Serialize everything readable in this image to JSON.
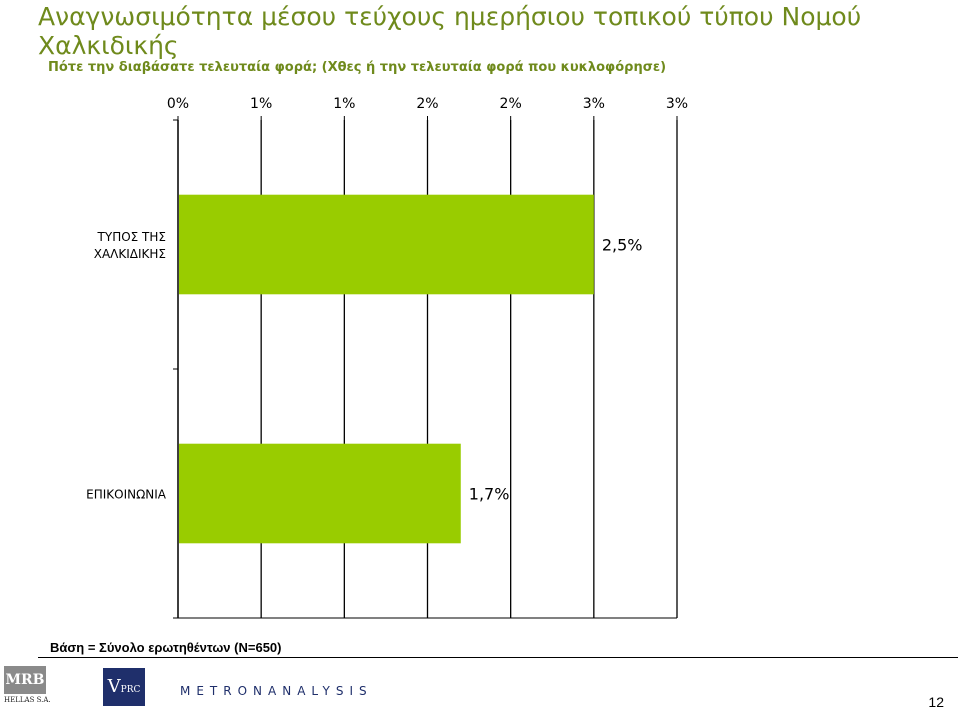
{
  "title": "Αναγνωσιμότητα μέσου τεύχους ημερήσιου τοπικού τύπου Νομού Χαλκιδικής",
  "subtitle": "Πότε την διαβάσατε τελευταία φορά; (Χθες ή την τελευταία φορά που κυκλοφόρησε)",
  "base_note": "Βάση = Σύνολο ερωτηθέντων (N=650)",
  "logos": {
    "mrb": "MRB",
    "mrb_sub": "HELLAS S.A.",
    "vprc": "V",
    "vprc_small": "PRC",
    "metron": "METRONANALYSIS"
  },
  "page_number": "12",
  "colors": {
    "bar": "#99cc00",
    "title": "#6f8a1c"
  },
  "chart_data": {
    "type": "bar",
    "orientation": "horizontal",
    "categories": [
      "ΤΥΠΟΣ ΤΗΣ ΧΑΛΚΙΔΙΚΗΣ",
      "ΕΠΙΚΟΙΝΩΝΙΑ"
    ],
    "category_lines": [
      [
        "ΤΥΠΟΣ ΤΗΣ",
        "ΧΑΛΚΙΔΙΚΗΣ"
      ],
      [
        "ΕΠΙΚΟΙΝΩΝΙΑ"
      ]
    ],
    "values": [
      2.5,
      1.7
    ],
    "value_labels": [
      "2,5%",
      "1,7%"
    ],
    "tick_labels": [
      "0%",
      "1%",
      "1%",
      "2%",
      "2%",
      "3%",
      "3%"
    ],
    "tick_values": [
      0,
      0.5,
      1,
      1.5,
      2,
      2.5,
      3
    ],
    "xlim": [
      0,
      3
    ],
    "grid": true,
    "axis_position": "top",
    "legend": "none"
  }
}
